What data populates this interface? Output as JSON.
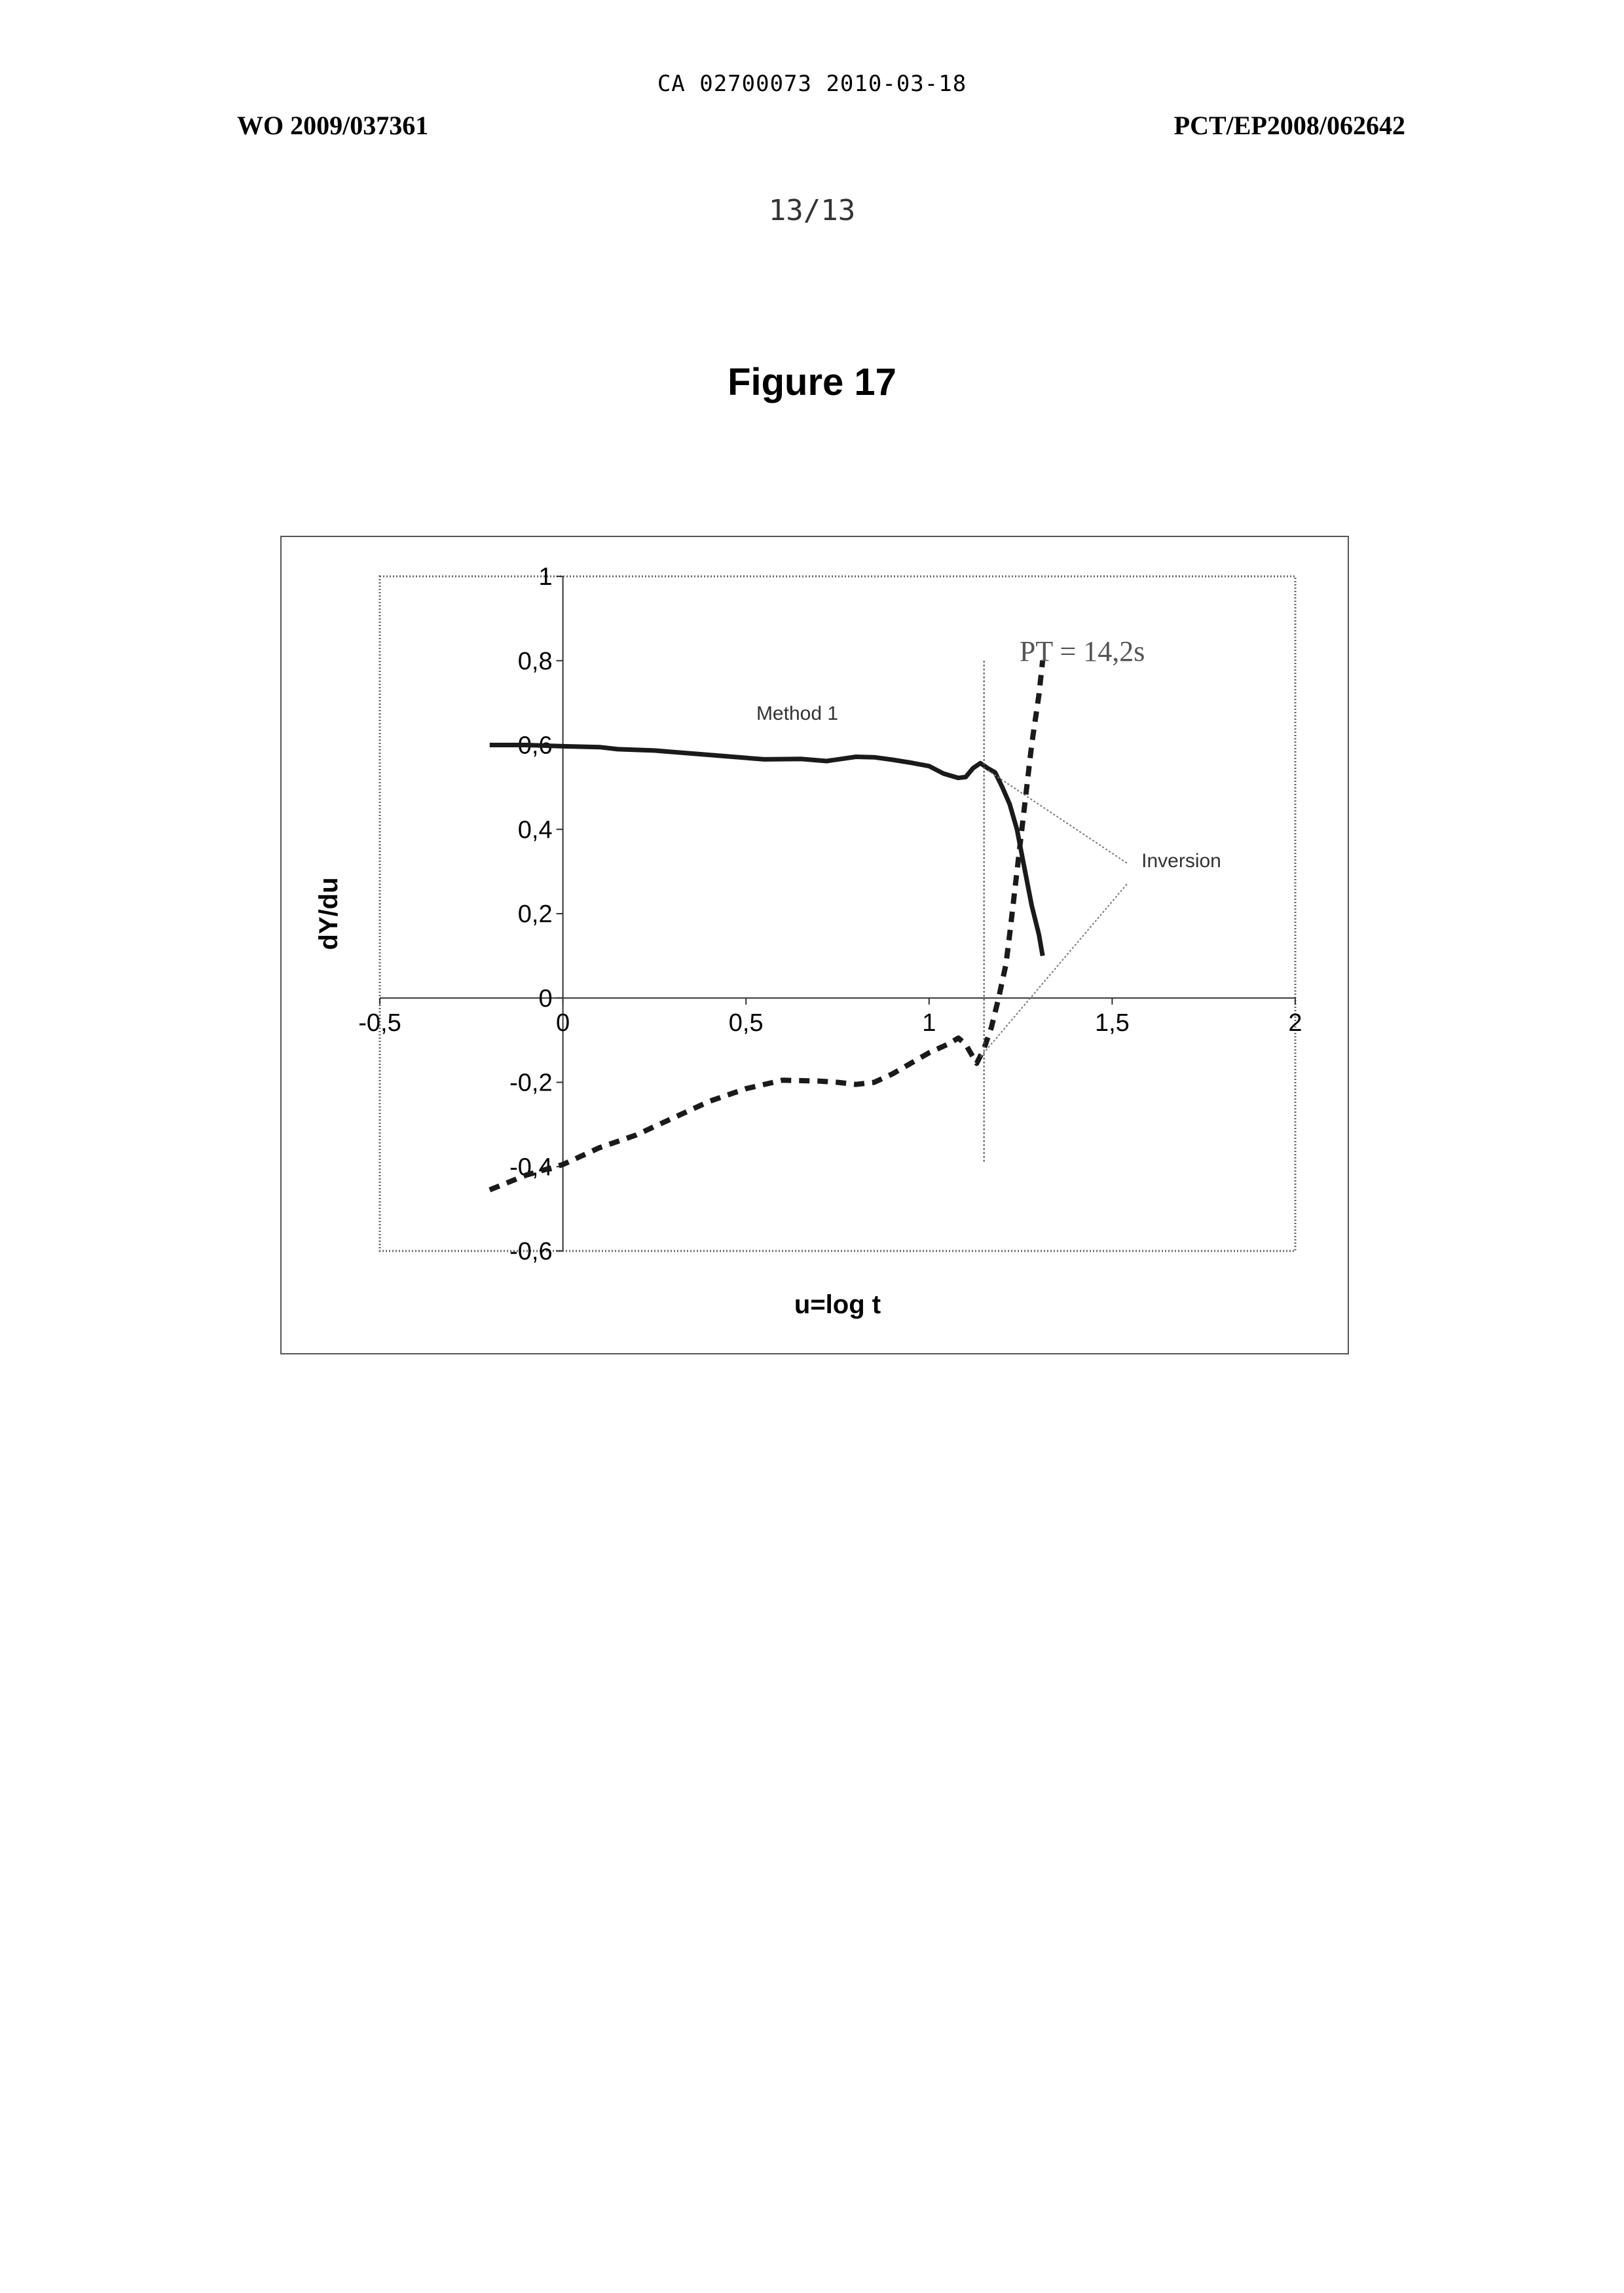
{
  "header": {
    "ca_line": "CA 02700073 2010-03-18",
    "wo_number": "WO 2009/037361",
    "pct_number": "PCT/EP2008/062642",
    "page_number": "13/13"
  },
  "figure": {
    "title": "Figure 17"
  },
  "chart_data": {
    "type": "line",
    "xlabel": "u=log t",
    "ylabel": "dY/du",
    "xlim": [
      -0.5,
      2
    ],
    "ylim": [
      -0.6,
      1
    ],
    "x_ticks": [
      "-0,5",
      "0",
      "0,5",
      "1",
      "1,5",
      "2"
    ],
    "y_ticks": [
      "1",
      "0,8",
      "0,6",
      "0,4",
      "0,2",
      "0",
      "-0,2",
      "-0,4",
      "-0,6"
    ],
    "x_tick_values": [
      -0.5,
      0,
      0.5,
      1,
      1.5,
      2
    ],
    "y_tick_values": [
      1,
      0.8,
      0.6,
      0.4,
      0.2,
      0,
      -0.2,
      -0.4,
      -0.6
    ],
    "grid": false,
    "series": [
      {
        "name": "",
        "style": "solid",
        "color": "#1a1a1a",
        "x": [
          -0.2,
          -0.1,
          0.0,
          0.1,
          0.15,
          0.25,
          0.35,
          0.45,
          0.55,
          0.65,
          0.72,
          0.8,
          0.85,
          0.9,
          0.95,
          1.0,
          1.04,
          1.08,
          1.1,
          1.12,
          1.14,
          1.16,
          1.18,
          1.2,
          1.22,
          1.24,
          1.26,
          1.28,
          1.3,
          1.31
        ],
        "y": [
          0.6,
          0.6,
          0.597,
          0.595,
          0.59,
          0.587,
          0.58,
          0.573,
          0.566,
          0.567,
          0.562,
          0.572,
          0.571,
          0.565,
          0.558,
          0.55,
          0.532,
          0.522,
          0.524,
          0.545,
          0.557,
          0.545,
          0.535,
          0.5,
          0.46,
          0.4,
          0.31,
          0.22,
          0.15,
          0.1
        ]
      },
      {
        "name": "",
        "style": "dashed",
        "color": "#1a1a1a",
        "x": [
          -0.2,
          -0.1,
          0.0,
          0.1,
          0.2,
          0.3,
          0.4,
          0.5,
          0.6,
          0.7,
          0.75,
          0.8,
          0.85,
          0.9,
          0.95,
          1.0,
          1.05,
          1.08,
          1.1,
          1.12,
          1.13,
          1.15,
          1.17,
          1.19,
          1.21,
          1.22,
          1.24,
          1.26,
          1.28,
          1.3,
          1.31
        ],
        "y": [
          -0.455,
          -0.42,
          -0.395,
          -0.355,
          -0.325,
          -0.285,
          -0.245,
          -0.215,
          -0.195,
          -0.197,
          -0.2,
          -0.205,
          -0.2,
          -0.18,
          -0.155,
          -0.13,
          -0.11,
          -0.095,
          -0.11,
          -0.14,
          -0.155,
          -0.12,
          -0.07,
          0.0,
          0.08,
          0.15,
          0.3,
          0.45,
          0.6,
          0.72,
          0.8
        ]
      }
    ],
    "vertical_marker": {
      "x": 1.15,
      "label": "PT = 14,2s"
    },
    "annotations": [
      {
        "text": "Method 1",
        "x": 0.64,
        "y": 0.66
      },
      {
        "text": "Inversion",
        "x": 1.58,
        "y": 0.31
      }
    ]
  }
}
